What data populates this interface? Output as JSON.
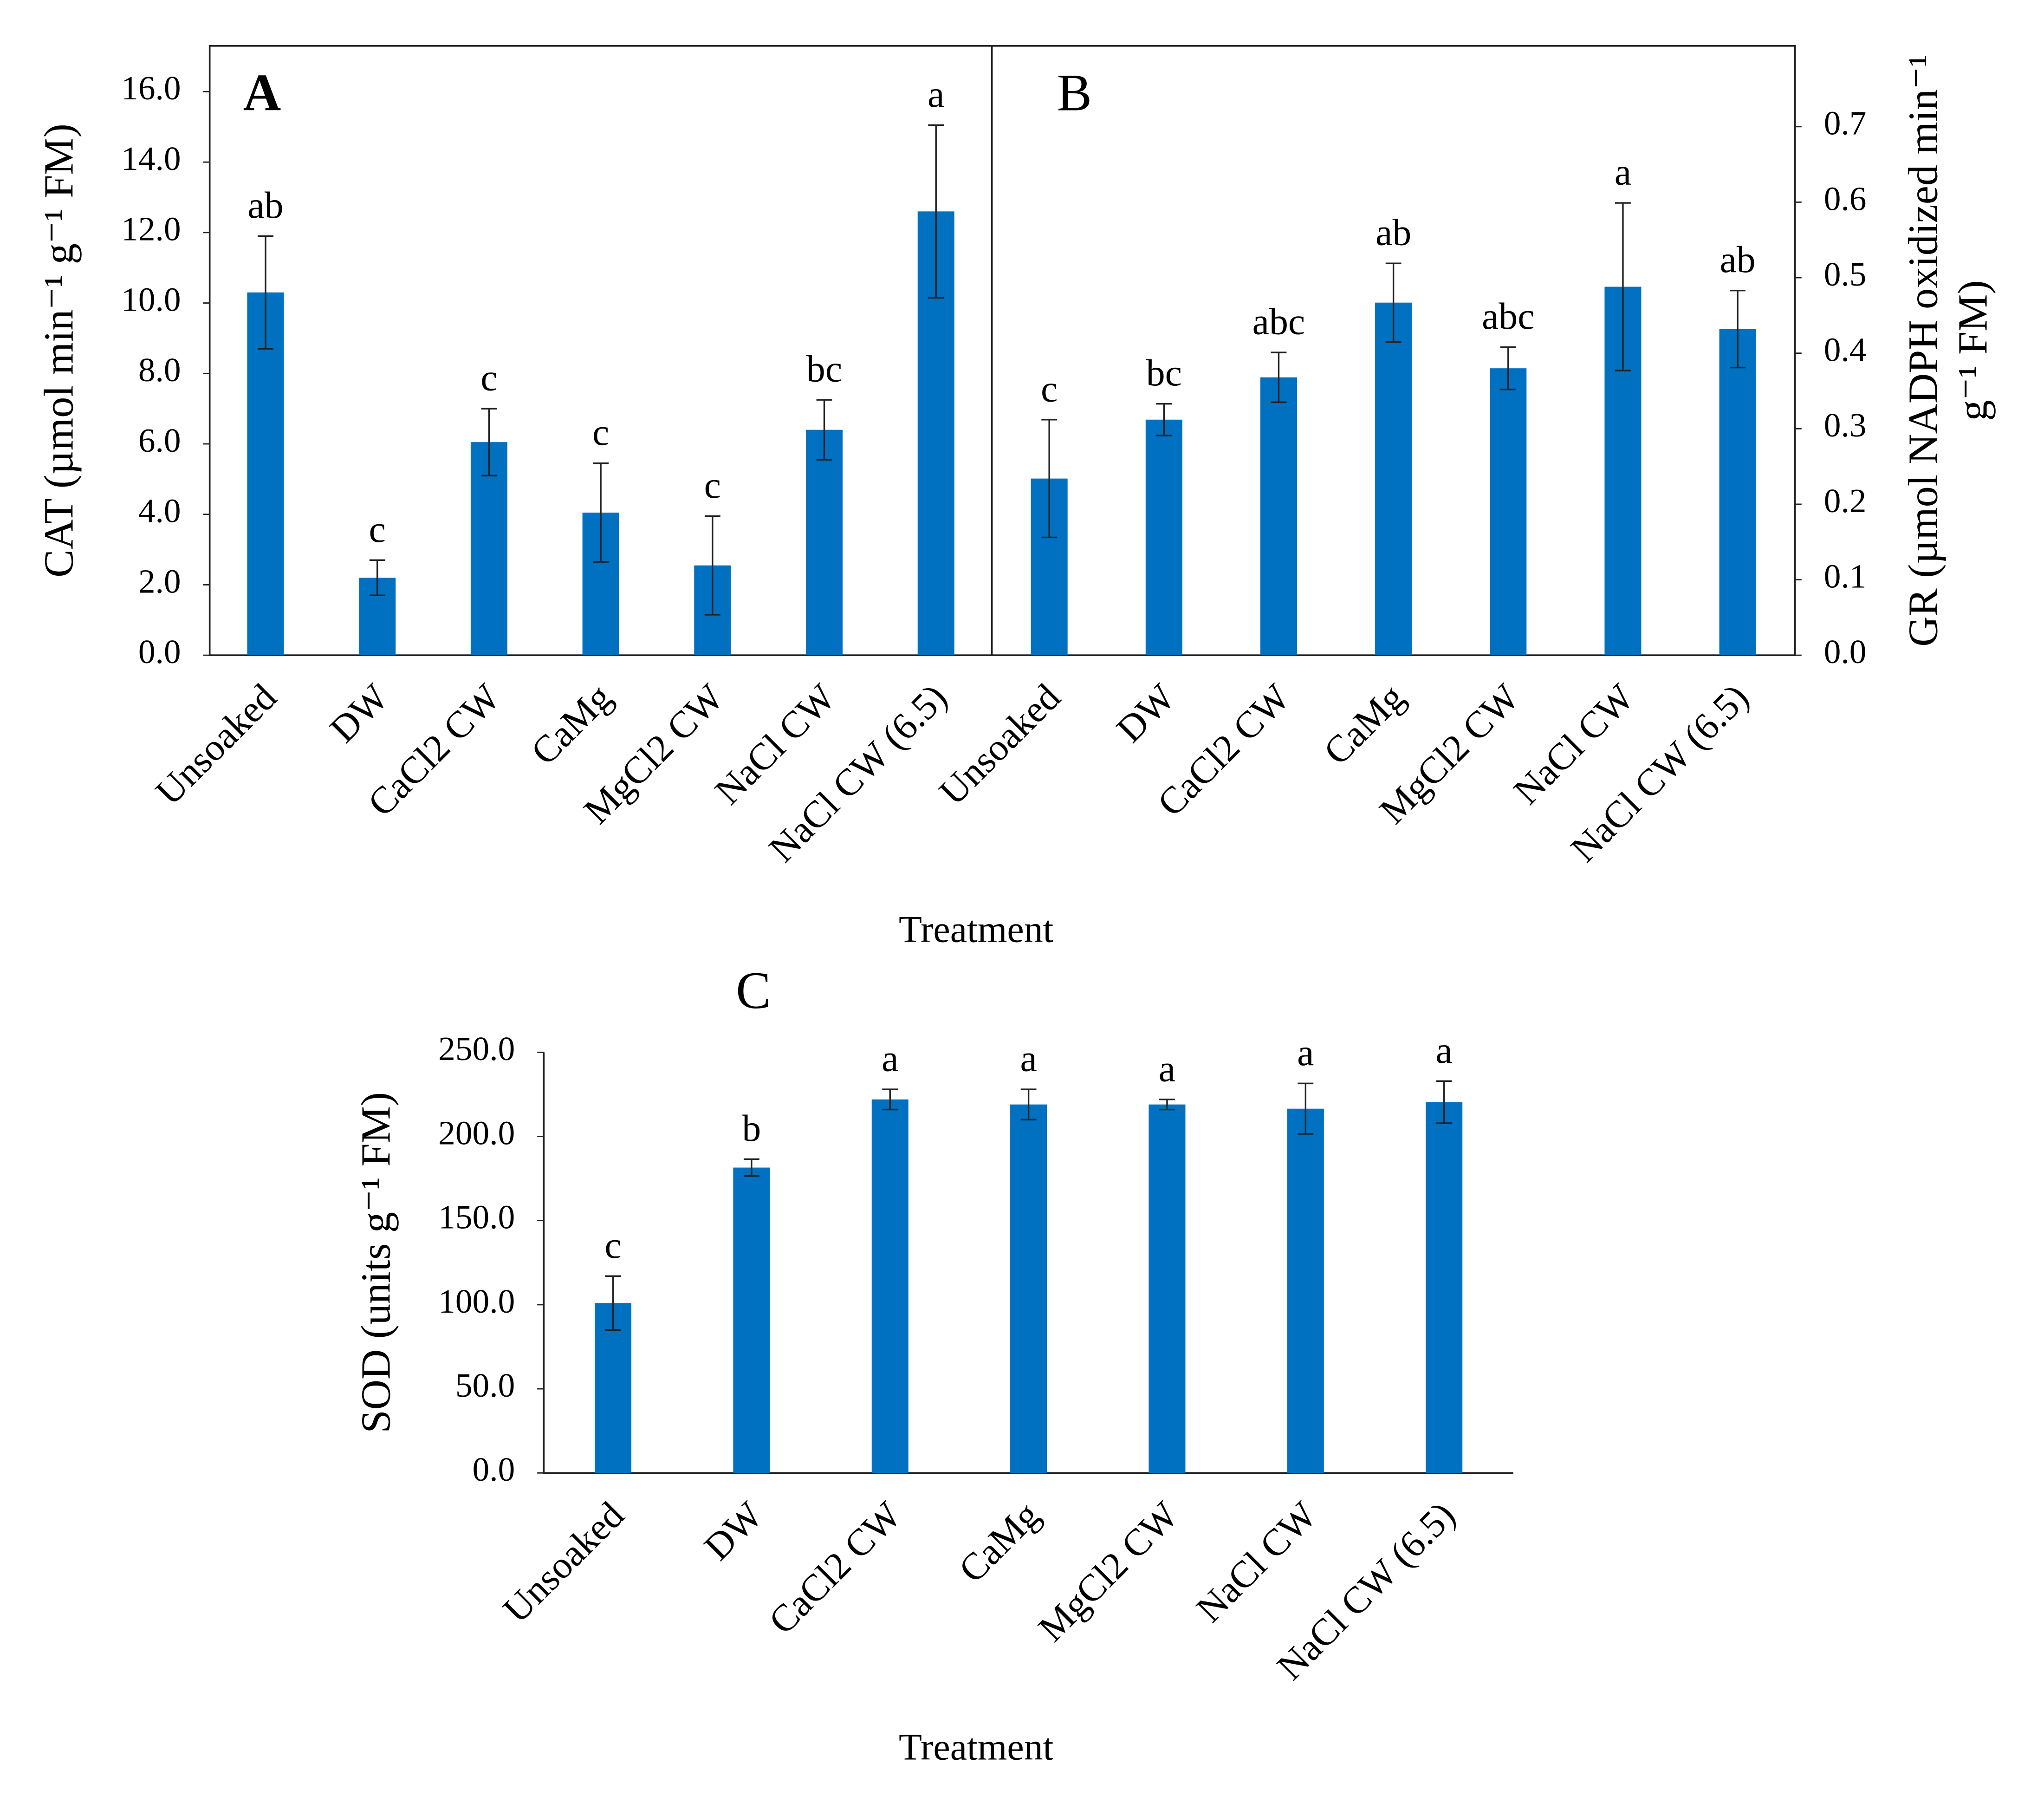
{
  "chart_data": [
    {
      "type": "bar",
      "title": "A",
      "ylabel": [
        "CAT (µmol min⁻¹ g⁻¹ FM)"
      ],
      "xlabel": "Treatment",
      "categories": [
        "Unsoaked",
        "DW",
        "CaCl2 CW",
        "CaMg",
        "MgCl2 CW",
        "NaCl CW",
        "NaCl CW (6.5)"
      ],
      "values": [
        10.3,
        2.2,
        6.05,
        4.05,
        2.55,
        6.4,
        12.6
      ],
      "errors": [
        1.6,
        0.5,
        0.95,
        1.4,
        1.4,
        0.85,
        2.45
      ],
      "labels": [
        "ab",
        "c",
        "c",
        "c",
        "c",
        "bc",
        "a"
      ],
      "color": "#0070c0",
      "ylim": [
        0,
        17.3
      ],
      "yticks": [
        {
          "value": 0,
          "label": "0.0"
        },
        {
          "value": 2,
          "label": "2.0"
        },
        {
          "value": 4,
          "label": "4.0"
        },
        {
          "value": 6,
          "label": "6.0"
        },
        {
          "value": 8,
          "label": "8.0"
        },
        {
          "value": 10,
          "label": "10.0"
        },
        {
          "value": 12,
          "label": "12.0"
        },
        {
          "value": 14,
          "label": "14.0"
        },
        {
          "value": 16,
          "label": "16.0"
        }
      ]
    },
    {
      "type": "bar",
      "title": "B",
      "ylabel": [
        "GR (µmol NADPH oxidized min⁻¹",
        "g⁻¹ FM)"
      ],
      "yaxis_position": "right",
      "categories": [
        "Unsoaked",
        "DW",
        "CaCl2 CW",
        "CaMg",
        "MgCl2 CW",
        "NaCl CW",
        "NaCl CW (6.5)"
      ],
      "values": [
        0.234,
        0.312,
        0.368,
        0.467,
        0.38,
        0.488,
        0.432
      ],
      "errors": [
        0.078,
        0.021,
        0.033,
        0.052,
        0.028,
        0.111,
        0.051
      ],
      "labels": [
        "c",
        "bc",
        "abc",
        "ab",
        "abc",
        "a",
        "ab"
      ],
      "color": "#0070c0",
      "ylim": [
        0,
        0.807
      ],
      "yticks": [
        {
          "value": 0,
          "label": "0.0"
        },
        {
          "value": 0.1,
          "label": "0.1"
        },
        {
          "value": 0.2,
          "label": "0.2"
        },
        {
          "value": 0.3,
          "label": "0.3"
        },
        {
          "value": 0.4,
          "label": "0.4"
        },
        {
          "value": 0.5,
          "label": "0.5"
        },
        {
          "value": 0.6,
          "label": "0.6"
        },
        {
          "value": 0.7,
          "label": "0.7"
        }
      ]
    },
    {
      "type": "bar",
      "title": "C",
      "ylabel": [
        "SOD (units g⁻¹ FM)"
      ],
      "xlabel": "Treatment",
      "categories": [
        "Unsoaked",
        "DW",
        "CaCl2 CW",
        "CaMg",
        "MgCl2 CW",
        "NaCl CW",
        "NaCl CW (6.5)"
      ],
      "values": [
        101,
        181.5,
        222,
        219,
        219,
        216.5,
        220.4
      ],
      "errors": [
        16,
        5,
        6,
        9,
        3,
        15,
        12.5
      ],
      "labels": [
        "c",
        "b",
        "a",
        "a",
        "a",
        "a",
        "a"
      ],
      "color": "#0070c0",
      "ylim": [
        0,
        250
      ],
      "yticks": [
        {
          "value": 0,
          "label": "0.0"
        },
        {
          "value": 50,
          "label": "50.0"
        },
        {
          "value": 100,
          "label": "100.0"
        },
        {
          "value": 150,
          "label": "150.0"
        },
        {
          "value": 200,
          "label": "200.0"
        },
        {
          "value": 250,
          "label": "250.0"
        }
      ]
    }
  ]
}
